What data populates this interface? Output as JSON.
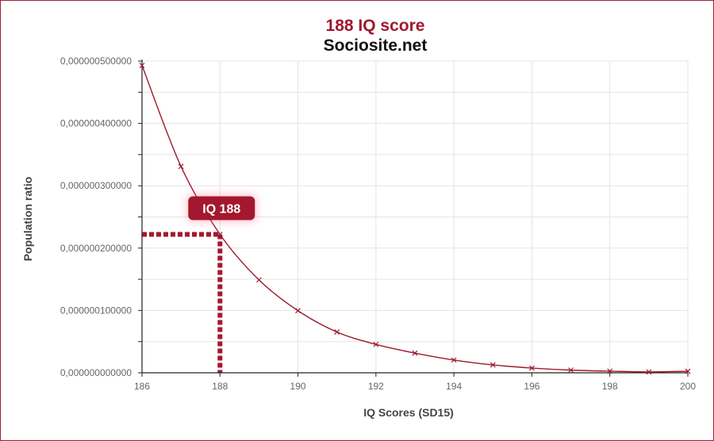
{
  "chart_data": {
    "type": "line",
    "title": "188 IQ score",
    "subtitle": "Sociosite.net",
    "xlabel": "IQ Scores (SD15)",
    "ylabel": "Population ratio",
    "xlim": [
      186,
      200
    ],
    "ylim": [
      0,
      5e-07
    ],
    "x_ticks": [
      186,
      188,
      190,
      192,
      194,
      196,
      198,
      200
    ],
    "x_tick_labels": [
      "186",
      "188",
      "190",
      "192",
      "194",
      "196",
      "198",
      "200"
    ],
    "y_ticks": [
      0,
      1e-07,
      2e-07,
      3e-07,
      4e-07,
      5e-07
    ],
    "y_tick_labels": [
      "0,000000000000",
      "0,000000100000",
      "0,000000200000",
      "0,000000300000",
      "0,000000400000",
      "0,000000500000"
    ],
    "grid": true,
    "series": [
      {
        "x": [
          186,
          187,
          188,
          189,
          190,
          191,
          192,
          193,
          194,
          195,
          196,
          197,
          198,
          199,
          200
        ],
        "y": [
          4.93e-07,
          3.31e-07,
          2.22e-07,
          1.49e-07,
          9.96e-08,
          6.54e-08,
          4.55e-08,
          3.16e-08,
          2.05e-08,
          1.26e-08,
          7.6e-09,
          4.3e-09,
          2.6e-09,
          1.4e-09,
          2.5e-09
        ],
        "color": "#9c1a2e",
        "marker": "x"
      }
    ],
    "highlight": {
      "label": "IQ 188",
      "x": 188,
      "y": 2.22e-07,
      "color": "#a3182f"
    }
  }
}
